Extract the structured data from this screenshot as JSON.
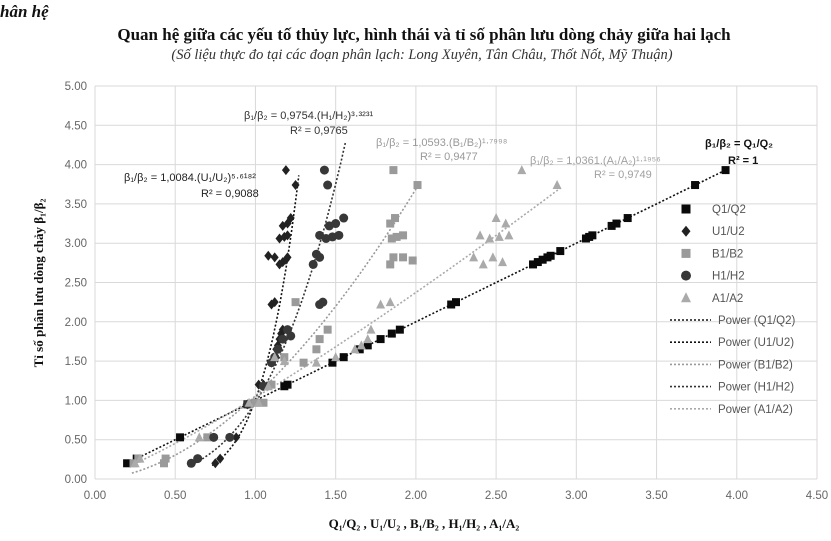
{
  "chart_data": {
    "type": "scatter",
    "title": "Quan hệ giữa các yếu tố thủy lực, hình thái và tỉ số phân lưu dòng chảy giữa hai lạch",
    "subtitle": "(Số liệu thực đo tại các đoạn phân lạch: Long Xuyên, Tân Châu, Thốt Nốt, Mỹ Thuận)",
    "corner_text": "hân hệ",
    "xlabel": "Q₁/Q₂ , U₁/U₂ , B₁/B₂ , H₁/H₂ , A₁/A₂",
    "ylabel": "Tỉ số phân lưu dòng chảy β₁/β₂",
    "xlim": [
      0,
      4.5
    ],
    "ylim": [
      0,
      5
    ],
    "x_ticks": [
      "0.00",
      "0.50",
      "1.00",
      "1.50",
      "2.00",
      "2.50",
      "3.00",
      "3.50",
      "4.00",
      "4.50"
    ],
    "y_ticks": [
      "0.00",
      "0.50",
      "1.00",
      "1.50",
      "2.00",
      "2.50",
      "3.00",
      "3.50",
      "4.00",
      "4.50",
      "5.00"
    ],
    "grid": true,
    "legend_position": "right",
    "series": [
      {
        "name": "Q1/Q2",
        "marker": "square",
        "color": "#0a0a0a",
        "points": [
          [
            0.2,
            0.2
          ],
          [
            0.26,
            0.26
          ],
          [
            0.53,
            0.53
          ],
          [
            0.95,
            0.95
          ],
          [
            1.18,
            1.18
          ],
          [
            1.2,
            1.2
          ],
          [
            1.48,
            1.48
          ],
          [
            1.55,
            1.55
          ],
          [
            1.65,
            1.65
          ],
          [
            1.7,
            1.7
          ],
          [
            1.78,
            1.78
          ],
          [
            1.85,
            1.85
          ],
          [
            1.9,
            1.9
          ],
          [
            2.22,
            2.22
          ],
          [
            2.25,
            2.25
          ],
          [
            2.73,
            2.73
          ],
          [
            2.76,
            2.76
          ],
          [
            2.79,
            2.79
          ],
          [
            2.82,
            2.82
          ],
          [
            2.84,
            2.84
          ],
          [
            2.9,
            2.9
          ],
          [
            3.06,
            3.06
          ],
          [
            3.08,
            3.08
          ],
          [
            3.1,
            3.1
          ],
          [
            3.22,
            3.22
          ],
          [
            3.25,
            3.25
          ],
          [
            3.32,
            3.32
          ],
          [
            3.74,
            3.74
          ],
          [
            3.93,
            3.93
          ]
        ]
      },
      {
        "name": "U1/U2",
        "marker": "diamond",
        "color": "#222222",
        "points": [
          [
            0.75,
            0.2
          ],
          [
            0.78,
            0.26
          ],
          [
            0.88,
            0.53
          ],
          [
            0.95,
            0.95
          ],
          [
            1.02,
            1.2
          ],
          [
            1.05,
            1.2
          ],
          [
            1.1,
            1.48
          ],
          [
            1.12,
            1.55
          ],
          [
            1.13,
            1.65
          ],
          [
            1.14,
            1.7
          ],
          [
            1.15,
            1.78
          ],
          [
            1.16,
            1.85
          ],
          [
            1.17,
            1.9
          ],
          [
            1.1,
            2.22
          ],
          [
            1.12,
            2.25
          ],
          [
            1.15,
            2.73
          ],
          [
            1.17,
            2.76
          ],
          [
            1.19,
            2.79
          ],
          [
            1.2,
            2.82
          ],
          [
            1.08,
            2.84
          ],
          [
            1.12,
            2.82
          ],
          [
            1.15,
            3.06
          ],
          [
            1.18,
            3.08
          ],
          [
            1.2,
            3.1
          ],
          [
            1.17,
            3.22
          ],
          [
            1.2,
            3.25
          ],
          [
            1.22,
            3.32
          ],
          [
            1.25,
            3.74
          ],
          [
            1.19,
            3.93
          ]
        ]
      },
      {
        "name": "B1/B2",
        "marker": "square",
        "color": "#9a9a9a",
        "points": [
          [
            0.24,
            0.2
          ],
          [
            0.27,
            0.26
          ],
          [
            0.43,
            0.2
          ],
          [
            0.44,
            0.26
          ],
          [
            0.7,
            0.53
          ],
          [
            0.96,
            0.95
          ],
          [
            1.0,
            0.97
          ],
          [
            1.05,
            0.97
          ],
          [
            1.1,
            1.2
          ],
          [
            1.18,
            1.55
          ],
          [
            1.25,
            2.25
          ],
          [
            1.3,
            1.48
          ],
          [
            1.38,
            1.65
          ],
          [
            1.4,
            1.78
          ],
          [
            1.45,
            1.9
          ],
          [
            1.84,
            2.73
          ],
          [
            1.86,
            2.82
          ],
          [
            1.92,
            2.82
          ],
          [
            1.98,
            2.78
          ],
          [
            1.85,
            3.06
          ],
          [
            1.88,
            3.08
          ],
          [
            1.92,
            3.1
          ],
          [
            1.84,
            3.25
          ],
          [
            1.87,
            3.32
          ],
          [
            1.86,
            3.93
          ],
          [
            2.01,
            3.74
          ]
        ]
      },
      {
        "name": "H1/H2",
        "marker": "circle",
        "color": "#383838",
        "points": [
          [
            0.6,
            0.2
          ],
          [
            0.64,
            0.26
          ],
          [
            0.74,
            0.53
          ],
          [
            0.84,
            0.53
          ],
          [
            0.95,
            0.95
          ],
          [
            1.05,
            1.18
          ],
          [
            1.1,
            1.48
          ],
          [
            1.12,
            1.55
          ],
          [
            1.14,
            1.65
          ],
          [
            1.17,
            1.78
          ],
          [
            1.2,
            1.9
          ],
          [
            1.22,
            1.82
          ],
          [
            1.4,
            2.22
          ],
          [
            1.42,
            2.25
          ],
          [
            1.36,
            2.73
          ],
          [
            1.4,
            2.82
          ],
          [
            1.38,
            2.86
          ],
          [
            1.44,
            3.06
          ],
          [
            1.48,
            3.08
          ],
          [
            1.4,
            3.1
          ],
          [
            1.52,
            3.1
          ],
          [
            1.46,
            3.22
          ],
          [
            1.5,
            3.25
          ],
          [
            1.55,
            3.32
          ],
          [
            1.45,
            3.74
          ],
          [
            1.43,
            3.93
          ]
        ]
      },
      {
        "name": "A1/A2",
        "marker": "triangle",
        "color": "#aaaaaa",
        "points": [
          [
            0.25,
            0.2
          ],
          [
            0.28,
            0.26
          ],
          [
            0.65,
            0.53
          ],
          [
            0.96,
            0.97
          ],
          [
            1.02,
            0.97
          ],
          [
            1.08,
            1.18
          ],
          [
            1.12,
            1.55
          ],
          [
            1.18,
            1.5
          ],
          [
            1.38,
            1.48
          ],
          [
            1.5,
            1.55
          ],
          [
            1.62,
            1.65
          ],
          [
            1.66,
            1.7
          ],
          [
            1.7,
            1.78
          ],
          [
            1.72,
            1.9
          ],
          [
            1.78,
            2.22
          ],
          [
            1.84,
            2.25
          ],
          [
            2.36,
            2.82
          ],
          [
            2.42,
            2.73
          ],
          [
            2.48,
            2.82
          ],
          [
            2.54,
            2.76
          ],
          [
            2.46,
            3.06
          ],
          [
            2.52,
            3.08
          ],
          [
            2.4,
            3.1
          ],
          [
            2.58,
            3.1
          ],
          [
            2.5,
            3.32
          ],
          [
            2.56,
            3.25
          ],
          [
            2.88,
            3.74
          ],
          [
            2.66,
            3.93
          ]
        ]
      }
    ],
    "trendlines": [
      {
        "name": "Power (Q1/Q2)",
        "a": 1.0,
        "b": 1.0,
        "color": "#111111",
        "x_range": [
          0.2,
          3.95
        ]
      },
      {
        "name": "Power (U1/U2)",
        "a": 1.0084,
        "b": 5.6182,
        "color": "#111111",
        "x_range": [
          0.73,
          1.27
        ]
      },
      {
        "name": "Power (B1/B2)",
        "a": 1.0593,
        "b": 1.7998,
        "color": "#9a9a9a",
        "x_range": [
          0.23,
          2.02
        ]
      },
      {
        "name": "Power (H1/H2)",
        "a": 0.9754,
        "b": 3.3231,
        "color": "#333333",
        "x_range": [
          0.58,
          1.56
        ]
      },
      {
        "name": "Power (A1/A2)",
        "a": 1.0361,
        "b": 1.1956,
        "color": "#aaaaaa",
        "x_range": [
          0.24,
          2.9
        ]
      }
    ],
    "annotations": [
      {
        "series": "U1/U2",
        "equation": "β₁/β₂ = 1,0084.(U₁/U₂)⁵·⁶¹⁸²",
        "r2": "R² = 0,9088",
        "color": "#222222"
      },
      {
        "series": "H1/H2",
        "equation": "β₁/β₂ = 0,9754.(H₁/H₂)³·³²³¹",
        "r2": "R² = 0,9765",
        "color": "#333333"
      },
      {
        "series": "B1/B2",
        "equation": "β₁/β₂ = 1,0593.(B₁/B₂)¹·⁷⁹⁹⁸",
        "r2": "R² = 0,9477",
        "color": "#999999"
      },
      {
        "series": "A1/A2",
        "equation": "β₁/β₂ = 1,0361.(A₁/A₂)¹·¹⁹⁵⁶",
        "r2": "R² = 0,9749",
        "color": "#a0a0a0"
      },
      {
        "series": "Q1/Q2",
        "equation": "β₁/β₂ = Q₁/Q₂",
        "r2": "R² = 1",
        "color": "#111111"
      }
    ]
  }
}
